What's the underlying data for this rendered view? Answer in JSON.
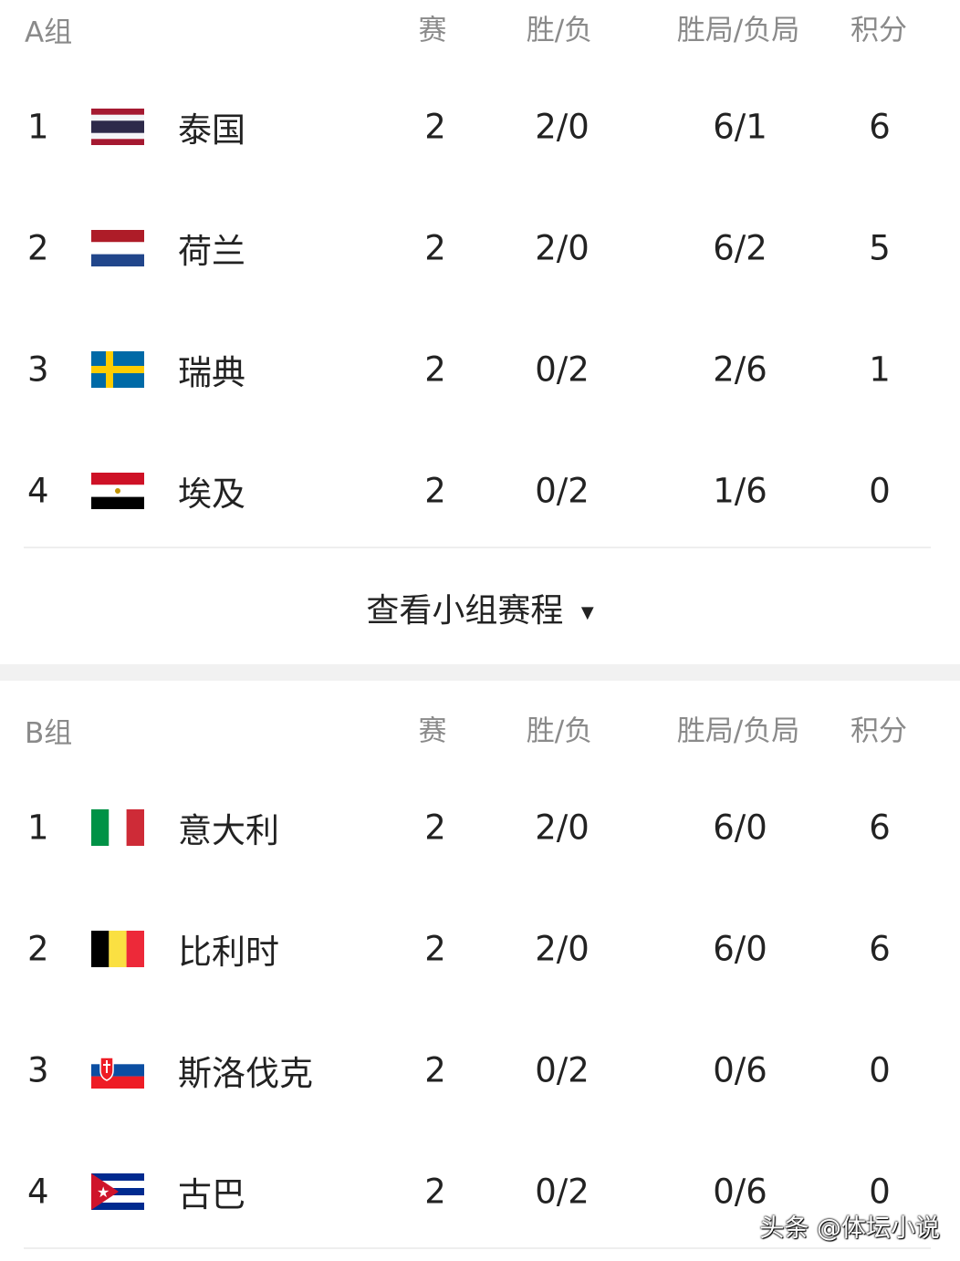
{
  "columns": {
    "played": "赛",
    "win_loss": "胜/负",
    "sets": "胜局/负局",
    "points": "积分"
  },
  "groups": [
    {
      "name": "A组",
      "teams": [
        {
          "rank": "1",
          "flag": "thailand",
          "name": "泰国",
          "played": "2",
          "win_loss": "2/0",
          "sets": "6/1",
          "points": "6"
        },
        {
          "rank": "2",
          "flag": "netherlands",
          "name": "荷兰",
          "played": "2",
          "win_loss": "2/0",
          "sets": "6/2",
          "points": "5"
        },
        {
          "rank": "3",
          "flag": "sweden",
          "name": "瑞典",
          "played": "2",
          "win_loss": "0/2",
          "sets": "2/6",
          "points": "1"
        },
        {
          "rank": "4",
          "flag": "egypt",
          "name": "埃及",
          "played": "2",
          "win_loss": "0/2",
          "sets": "1/6",
          "points": "0"
        }
      ]
    },
    {
      "name": "B组",
      "teams": [
        {
          "rank": "1",
          "flag": "italy",
          "name": "意大利",
          "played": "2",
          "win_loss": "2/0",
          "sets": "6/0",
          "points": "6"
        },
        {
          "rank": "2",
          "flag": "belgium",
          "name": "比利时",
          "played": "2",
          "win_loss": "2/0",
          "sets": "6/0",
          "points": "6"
        },
        {
          "rank": "3",
          "flag": "slovakia",
          "name": "斯洛伐克",
          "played": "2",
          "win_loss": "0/2",
          "sets": "0/6",
          "points": "0"
        },
        {
          "rank": "4",
          "flag": "cuba",
          "name": "古巴",
          "played": "2",
          "win_loss": "0/2",
          "sets": "0/6",
          "points": "0"
        }
      ]
    }
  ],
  "view_schedule": "查看小组赛程",
  "view_schedule_icon": "caret-down-icon",
  "watermark": "头条 @体坛小说"
}
